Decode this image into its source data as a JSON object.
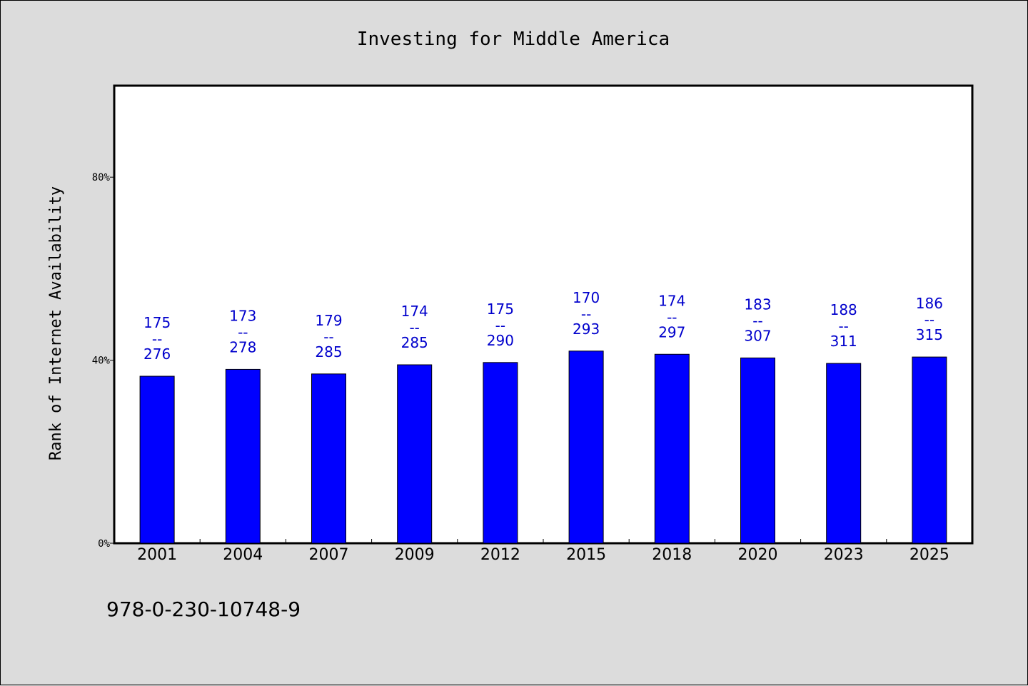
{
  "chart_data": {
    "type": "bar",
    "title": "Investing for Middle America",
    "ylabel": "Rank of Internet Availability",
    "xlabel": "",
    "ylim": [
      0,
      100
    ],
    "yticks": [
      {
        "value": 0,
        "label": "0%"
      },
      {
        "value": 40,
        "label": "40%"
      },
      {
        "value": 80,
        "label": "80%"
      }
    ],
    "categories": [
      "2001",
      "2004",
      "2007",
      "2009",
      "2012",
      "2015",
      "2018",
      "2020",
      "2023",
      "2025"
    ],
    "values": [
      36.5,
      38,
      37,
      39,
      39.5,
      42,
      41.3,
      40.5,
      39.3,
      40.7
    ],
    "bar_labels": [
      {
        "top": "175",
        "sep": "--",
        "bottom": "276"
      },
      {
        "top": "173",
        "sep": "--",
        "bottom": "278"
      },
      {
        "top": "179",
        "sep": "--",
        "bottom": "285"
      },
      {
        "top": "174",
        "sep": "--",
        "bottom": "285"
      },
      {
        "top": "175",
        "sep": "--",
        "bottom": "290"
      },
      {
        "top": "170",
        "sep": "--",
        "bottom": "293"
      },
      {
        "top": "174",
        "sep": "--",
        "bottom": "297"
      },
      {
        "top": "183",
        "sep": "--",
        "bottom": "307"
      },
      {
        "top": "188",
        "sep": "--",
        "bottom": "311"
      },
      {
        "top": "186",
        "sep": "--",
        "bottom": "315"
      }
    ],
    "bar_color": "#0000ff",
    "label_color": "#0000cc",
    "grid": false,
    "legend": "none"
  },
  "footer": {
    "code": "978-0-230-10748-9"
  }
}
